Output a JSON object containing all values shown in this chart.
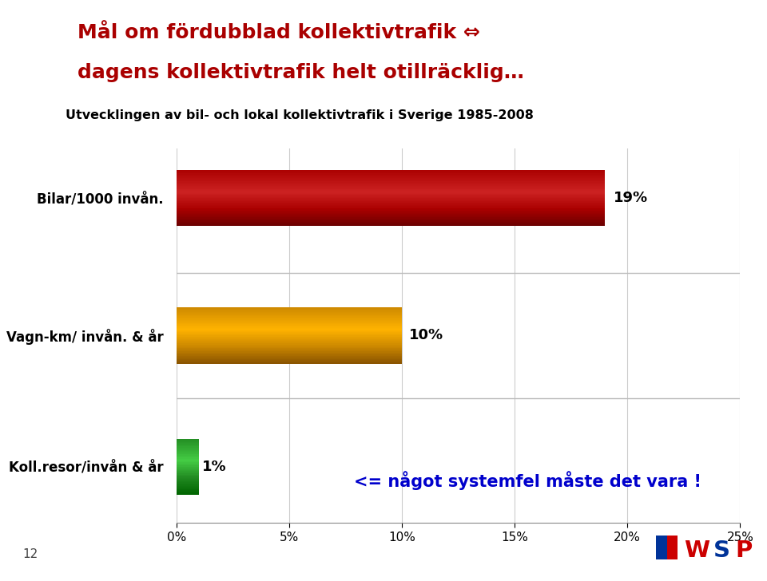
{
  "title_line1": "Mål om fördubblad kollektivtrafik ⇔",
  "title_line2": "dagens kollektivtrafik helt otillräcklig…",
  "subtitle": "Utvecklingen av bil- och lokal kollektivtrafik i Sverige 1985-2008",
  "categories": [
    "Bilar/1000 invån.",
    "Vagn-km/ invån. & år",
    "Koll.resor/invån & år"
  ],
  "values": [
    19,
    10,
    1
  ],
  "bar_colors_dark": [
    "#6B0000",
    "#8B5500",
    "#006400"
  ],
  "bar_colors_mid": [
    "#AA0000",
    "#CC8800",
    "#228B22"
  ],
  "bar_colors_light": [
    "#CC2222",
    "#FFB300",
    "#44CC44"
  ],
  "value_labels": [
    "19%",
    "10%",
    "1%"
  ],
  "annotation_text": "<= något systemfel måste det vara !",
  "xlim": [
    0,
    25
  ],
  "xtick_values": [
    0,
    5,
    10,
    15,
    20,
    25
  ],
  "xtick_labels": [
    "0%",
    "5%",
    "10%",
    "15%",
    "20%",
    "25%"
  ],
  "page_number": "12",
  "background_color": "#FFFFFF",
  "chart_bg_color": "#FFFFFF",
  "title_bg_color": "#FFFFAA",
  "title_border_color": "#CC0000",
  "title_text_color": "#AA0000",
  "subtitle_bg_color": "#E0E0E0",
  "subtitle_border_color": "#555555",
  "subtitle_text_color": "#000000",
  "annotation_bg_color": "#CCFFCC",
  "annotation_shadow_color": "#AAAAAA",
  "annotation_border_color": "#AA0000",
  "annotation_text_color": "#0000CC",
  "bar_height": 0.45,
  "grid_color": "#CCCCCC",
  "separator_color": "#BBBBBB"
}
